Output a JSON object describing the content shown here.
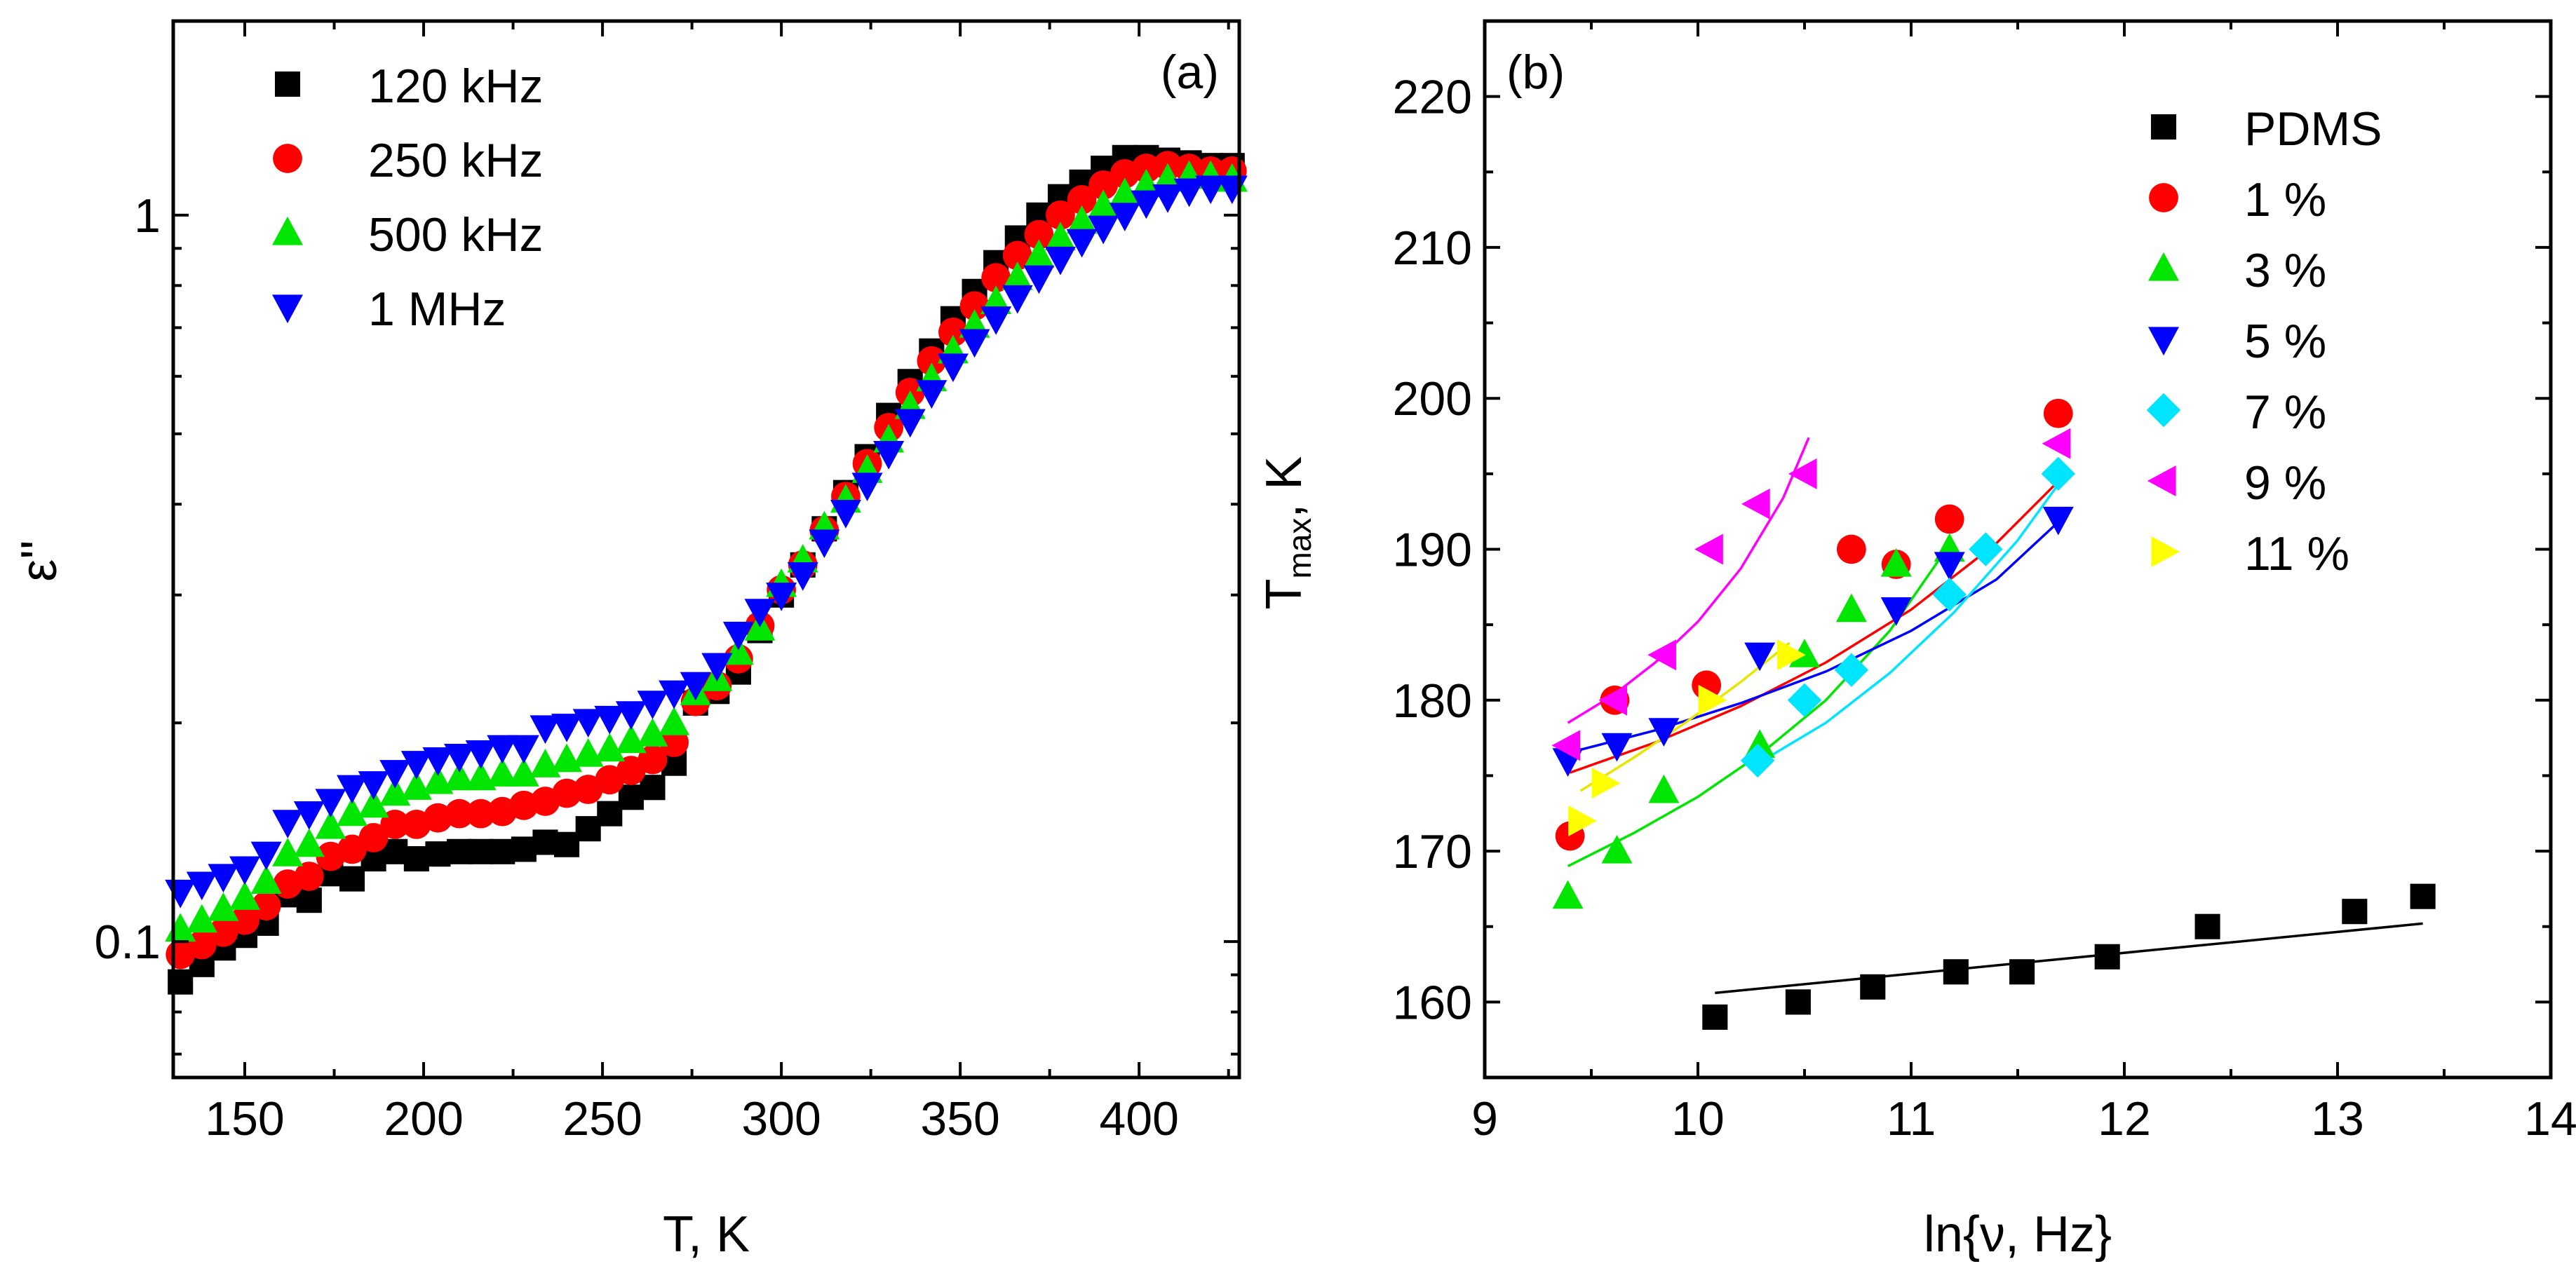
{
  "chart_data": [
    {
      "type": "scatter",
      "panel_label": "(a)",
      "xlabel": "T, K",
      "ylabel": "ε''",
      "xlim": [
        130,
        428
      ],
      "ylim": [
        0.065,
        1.85
      ],
      "yscale": "log",
      "x_ticks": [
        150,
        200,
        250,
        300,
        350,
        400
      ],
      "x_tick_labels": [
        "150",
        "200",
        "250",
        "300",
        "350",
        "400"
      ],
      "y_ticks": [
        0.1,
        1
      ],
      "y_tick_labels": [
        "0.1",
        "1"
      ],
      "legend_position": "top-left",
      "series": [
        {
          "name": "120 kHz",
          "marker": "square",
          "color": "#000000",
          "x": [
            132,
            138,
            144,
            150,
            156,
            162,
            168,
            174,
            180,
            186,
            192,
            198,
            204,
            210,
            216,
            222,
            228,
            234,
            240,
            246,
            252,
            258,
            264,
            270,
            276,
            282,
            288,
            294,
            300,
            306,
            312,
            318,
            324,
            330,
            336,
            342,
            348,
            354,
            360,
            366,
            372,
            378,
            384,
            390,
            396,
            402,
            408,
            414,
            420,
            426
          ],
          "y": [
            0.088,
            0.093,
            0.098,
            0.102,
            0.106,
            0.116,
            0.114,
            0.124,
            0.122,
            0.13,
            0.133,
            0.13,
            0.132,
            0.133,
            0.133,
            0.133,
            0.134,
            0.137,
            0.136,
            0.143,
            0.15,
            0.158,
            0.163,
            0.176,
            0.213,
            0.221,
            0.235,
            0.268,
            0.3,
            0.33,
            0.37,
            0.415,
            0.465,
            0.53,
            0.59,
            0.65,
            0.72,
            0.785,
            0.86,
            0.93,
            1.0,
            1.06,
            1.11,
            1.16,
            1.2,
            1.2,
            1.19,
            1.18,
            1.17,
            1.17
          ]
        },
        {
          "name": "250 kHz",
          "marker": "circle",
          "color": "#ff0000",
          "x": [
            132,
            138,
            144,
            150,
            156,
            162,
            168,
            174,
            180,
            186,
            192,
            198,
            204,
            210,
            216,
            222,
            228,
            234,
            240,
            246,
            252,
            258,
            264,
            270,
            276,
            282,
            288,
            294,
            300,
            306,
            312,
            318,
            324,
            330,
            336,
            342,
            348,
            354,
            360,
            366,
            372,
            378,
            384,
            390,
            396,
            402,
            408,
            414,
            420,
            426
          ],
          "y": [
            0.096,
            0.099,
            0.103,
            0.107,
            0.112,
            0.12,
            0.123,
            0.131,
            0.134,
            0.139,
            0.145,
            0.145,
            0.148,
            0.15,
            0.15,
            0.151,
            0.154,
            0.156,
            0.16,
            0.162,
            0.167,
            0.172,
            0.178,
            0.188,
            0.214,
            0.225,
            0.245,
            0.272,
            0.305,
            0.33,
            0.368,
            0.41,
            0.455,
            0.51,
            0.57,
            0.63,
            0.69,
            0.75,
            0.82,
            0.88,
            0.94,
            1.0,
            1.05,
            1.1,
            1.14,
            1.16,
            1.17,
            1.16,
            1.15,
            1.15
          ]
        },
        {
          "name": "500 kHz",
          "marker": "triangle-up",
          "color": "#00e600",
          "x": [
            132,
            138,
            144,
            150,
            156,
            162,
            168,
            174,
            180,
            186,
            192,
            198,
            204,
            210,
            216,
            222,
            228,
            234,
            240,
            246,
            252,
            258,
            264,
            270,
            276,
            282,
            288,
            294,
            300,
            306,
            312,
            318,
            324,
            330,
            336,
            342,
            348,
            354,
            360,
            366,
            372,
            378,
            384,
            390,
            396,
            402,
            408,
            414,
            420,
            426
          ],
          "y": [
            0.104,
            0.107,
            0.111,
            0.115,
            0.121,
            0.132,
            0.136,
            0.144,
            0.15,
            0.154,
            0.16,
            0.163,
            0.166,
            0.168,
            0.168,
            0.17,
            0.17,
            0.175,
            0.178,
            0.181,
            0.184,
            0.189,
            0.193,
            0.2,
            0.22,
            0.23,
            0.25,
            0.27,
            0.31,
            0.335,
            0.372,
            0.405,
            0.445,
            0.49,
            0.545,
            0.595,
            0.65,
            0.705,
            0.76,
            0.82,
            0.88,
            0.93,
            0.98,
            1.03,
            1.07,
            1.1,
            1.12,
            1.13,
            1.13,
            1.12
          ]
        },
        {
          "name": "1 MHz",
          "marker": "triangle-down",
          "color": "#0000ff",
          "x": [
            132,
            138,
            144,
            150,
            156,
            162,
            168,
            174,
            180,
            186,
            192,
            198,
            204,
            210,
            216,
            222,
            228,
            234,
            240,
            246,
            252,
            258,
            264,
            270,
            276,
            282,
            288,
            294,
            300,
            306,
            312,
            318,
            324,
            330,
            336,
            342,
            348,
            354,
            360,
            366,
            372,
            378,
            384,
            390,
            396,
            402,
            408,
            414,
            420,
            426
          ],
          "y": [
            0.117,
            0.12,
            0.123,
            0.126,
            0.132,
            0.146,
            0.15,
            0.156,
            0.163,
            0.165,
            0.171,
            0.176,
            0.178,
            0.18,
            0.182,
            0.185,
            0.185,
            0.197,
            0.198,
            0.201,
            0.203,
            0.206,
            0.213,
            0.22,
            0.226,
            0.24,
            0.265,
            0.285,
            0.3,
            0.32,
            0.355,
            0.39,
            0.425,
            0.47,
            0.52,
            0.57,
            0.62,
            0.67,
            0.72,
            0.77,
            0.82,
            0.87,
            0.92,
            0.96,
            1.0,
            1.04,
            1.06,
            1.08,
            1.09,
            1.09
          ]
        }
      ]
    },
    {
      "type": "scatter",
      "panel_label": "(b)",
      "xlabel": "ln{ν, Hz}",
      "ylabel_main": "T",
      "ylabel_sub": "max",
      "ylabel_tail": ", K",
      "xlim": [
        9,
        14
      ],
      "ylim": [
        155,
        225
      ],
      "x_ticks": [
        9,
        10,
        11,
        12,
        13,
        14
      ],
      "x_tick_labels": [
        "9",
        "10",
        "11",
        "12",
        "13",
        "14"
      ],
      "y_ticks": [
        160,
        170,
        180,
        190,
        200,
        210,
        220
      ],
      "y_tick_labels": [
        "160",
        "170",
        "180",
        "190",
        "200",
        "210",
        "220"
      ],
      "legend_position": "top-right",
      "series": [
        {
          "name": "PDMS",
          "marker": "square",
          "color": "#000000",
          "x": [
            10.08,
            10.47,
            10.82,
            11.21,
            11.52,
            11.92,
            12.39,
            13.08,
            13.4
          ],
          "y": [
            159,
            160,
            161,
            162,
            162,
            163,
            165,
            166,
            167
          ],
          "fit": {
            "x": [
              10.08,
              13.4
            ],
            "y": [
              160.6,
              165.2
            ]
          }
        },
        {
          "name": "1 %",
          "marker": "circle",
          "color": "#ff0000",
          "x": [
            9.4,
            9.61,
            10.04,
            10.72,
            10.93,
            11.18,
            11.69
          ],
          "y": [
            171,
            180,
            181,
            190,
            189,
            192,
            199
          ],
          "fit": {
            "x": [
              9.4,
              9.8,
              10.2,
              10.6,
              11.0,
              11.4,
              11.69
            ],
            "y": [
              175.2,
              177.2,
              179.6,
              182.5,
              186.0,
              190.4,
              194.5
            ]
          }
        },
        {
          "name": "3 %",
          "marker": "triangle-up",
          "color": "#00e600",
          "x": [
            9.39,
            9.62,
            9.84,
            10.29,
            10.5,
            10.72,
            10.93,
            11.18
          ],
          "y": [
            167,
            170,
            174,
            177,
            183,
            186,
            189,
            190
          ],
          "fit": {
            "x": [
              9.39,
              9.7,
              10.0,
              10.3,
              10.6,
              10.9,
              11.18
            ],
            "y": [
              169.0,
              171.2,
              173.6,
              176.5,
              180.0,
              184.6,
              190.3
            ]
          }
        },
        {
          "name": "5 %",
          "marker": "triangle-down",
          "color": "#0000ff",
          "x": [
            9.39,
            9.62,
            9.84,
            10.29,
            10.93,
            11.18,
            11.69
          ],
          "y": [
            176,
            177,
            178,
            183,
            186,
            189,
            192
          ],
          "fit": {
            "x": [
              9.39,
              9.8,
              10.2,
              10.6,
              11.0,
              11.4,
              11.69
            ],
            "y": [
              176.5,
              178.0,
              179.8,
              181.9,
              184.6,
              188.0,
              191.8
            ]
          }
        },
        {
          "name": "7 %",
          "marker": "diamond",
          "color": "#00e5ff",
          "x": [
            10.28,
            10.5,
            10.72,
            11.18,
            11.35,
            11.69
          ],
          "y": [
            176,
            180,
            182,
            187,
            190,
            195
          ],
          "fit": {
            "x": [
              10.28,
              10.6,
              10.9,
              11.2,
              11.5,
              11.69
            ],
            "y": [
              175.8,
              178.5,
              181.8,
              185.8,
              190.6,
              194.3
            ]
          }
        },
        {
          "name": "9 %",
          "marker": "triangle-left",
          "color": "#ff00ff",
          "x": [
            9.39,
            9.61,
            9.84,
            10.06,
            10.28,
            10.5,
            11.69
          ],
          "y": [
            177,
            180,
            183,
            190,
            193,
            195,
            197
          ],
          "fit": {
            "x": [
              9.39,
              9.6,
              9.8,
              10.0,
              10.2,
              10.4,
              10.52
            ],
            "y": [
              178.5,
              180.3,
              182.5,
              185.2,
              188.7,
              193.4,
              197.4
            ]
          }
        },
        {
          "name": "11 %",
          "marker": "triangle-right",
          "color": "#ffff00",
          "x": [
            9.45,
            9.56,
            10.06,
            10.43
          ],
          "y": [
            172,
            174.5,
            180,
            183
          ],
          "fit": {
            "x": [
              9.45,
              9.7,
              9.95,
              10.2,
              10.43
            ],
            "y": [
              174.0,
              176.2,
              178.6,
              181.2,
              183.8
            ]
          }
        }
      ]
    }
  ]
}
